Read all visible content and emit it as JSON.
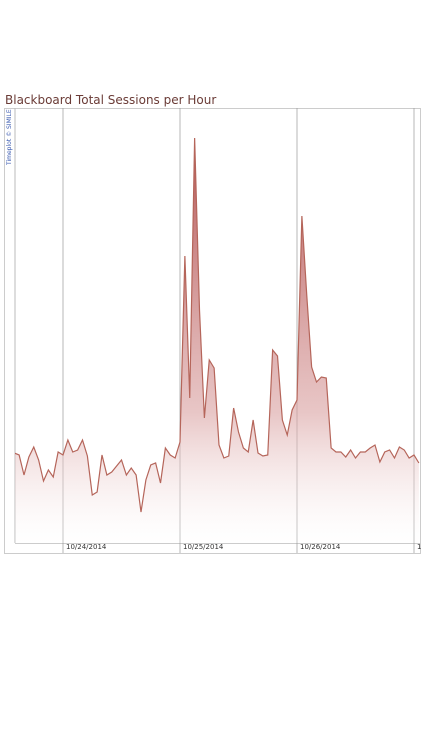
{
  "chart_data": {
    "type": "area",
    "title": "Blackboard Total Sessions per Hour",
    "credit": "Timeplot © SIMILE",
    "categories": [
      null,
      null,
      null,
      null,
      null,
      null,
      null,
      null,
      null,
      null,
      "10/24/2014",
      null,
      null,
      null,
      null,
      null,
      null,
      null,
      null,
      null,
      null,
      null,
      null,
      null,
      null,
      null,
      null,
      null,
      null,
      null,
      null,
      null,
      null,
      null,
      "10/25/2014",
      null,
      null,
      null,
      null,
      null,
      null,
      null,
      null,
      null,
      null,
      null,
      null,
      null,
      null,
      null,
      null,
      null,
      null,
      null,
      null,
      null,
      null,
      null,
      "10/26/2014",
      null,
      null,
      null,
      null,
      null,
      null,
      null,
      null,
      null,
      null,
      null,
      null,
      null,
      null,
      null,
      null,
      null,
      null,
      null,
      null,
      null,
      null,
      null,
      "1",
      null
    ],
    "values": [
      90,
      88,
      68,
      86,
      96,
      83,
      62,
      73,
      66,
      91,
      88,
      103,
      91,
      93,
      103,
      87,
      48,
      51,
      88,
      68,
      71,
      77,
      83,
      68,
      75,
      68,
      31,
      63,
      78,
      80,
      60,
      95,
      88,
      85,
      101,
      287,
      145,
      405,
      233,
      125,
      183,
      175,
      98,
      85,
      87,
      135,
      111,
      95,
      91,
      123,
      90,
      87,
      88,
      193,
      187,
      123,
      108,
      133,
      143,
      327,
      248,
      176,
      161,
      166,
      165,
      95,
      91,
      91,
      86,
      93,
      85,
      91,
      91,
      95,
      98,
      81,
      91,
      93,
      85,
      96,
      93,
      85,
      88,
      80
    ],
    "color": "#b5655a",
    "ylim": [
      0,
      435
    ],
    "grid": true
  }
}
